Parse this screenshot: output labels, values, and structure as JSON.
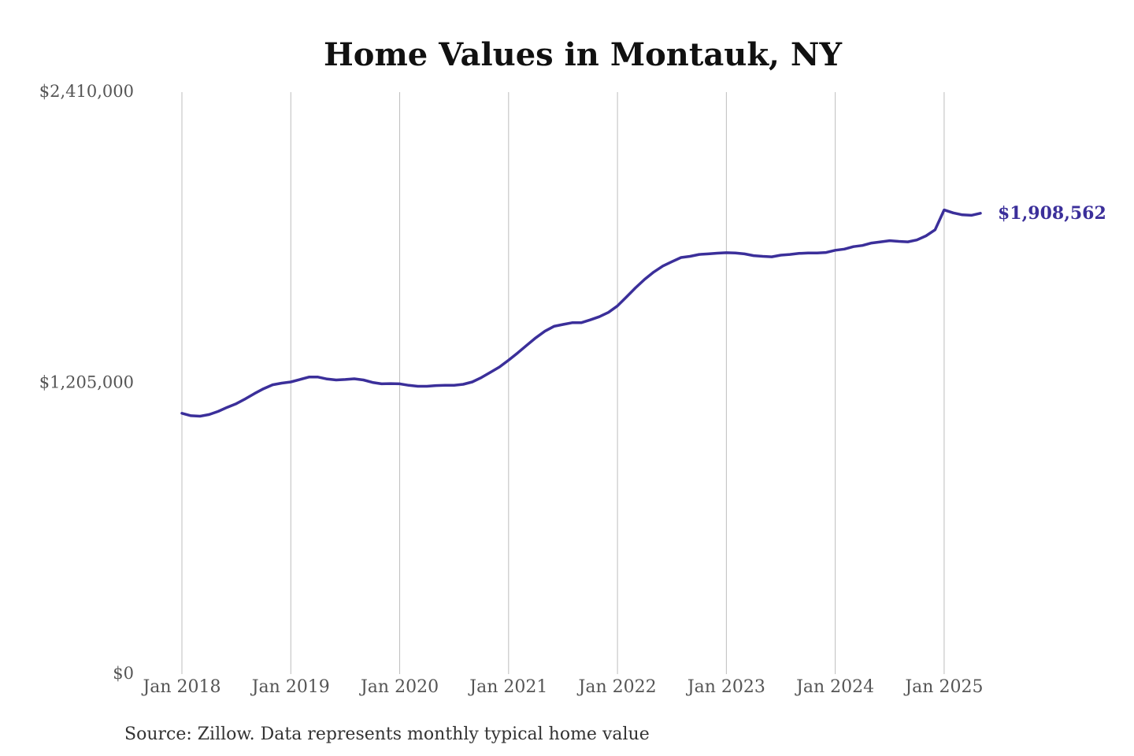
{
  "chart_data": {
    "type": "line",
    "title": "Home Values in Montauk, NY",
    "xlabel": "",
    "ylabel": "",
    "ylim": [
      0,
      2410000
    ],
    "yticks": [
      {
        "value": 0,
        "label": "$0"
      },
      {
        "value": 1205000,
        "label": "$1,205,000"
      },
      {
        "value": 2410000,
        "label": "$2,410,000"
      }
    ],
    "xlim": [
      "2018-01",
      "2025-05"
    ],
    "xticks": [
      {
        "date": "2018-01",
        "label": "Jan 2018"
      },
      {
        "date": "2019-01",
        "label": "Jan 2019"
      },
      {
        "date": "2020-01",
        "label": "Jan 2020"
      },
      {
        "date": "2021-01",
        "label": "Jan 2021"
      },
      {
        "date": "2022-01",
        "label": "Jan 2022"
      },
      {
        "date": "2023-01",
        "label": "Jan 2023"
      },
      {
        "date": "2024-01",
        "label": "Jan 2024"
      },
      {
        "date": "2025-01",
        "label": "Jan 2025"
      }
    ],
    "grid": "vertical",
    "series": [
      {
        "color": "#3b2f9a",
        "points": [
          [
            "2018-01",
            1080000
          ],
          [
            "2018-02",
            1070000
          ],
          [
            "2018-03",
            1068000
          ],
          [
            "2018-04",
            1075000
          ],
          [
            "2018-05",
            1088000
          ],
          [
            "2018-06",
            1105000
          ],
          [
            "2018-07",
            1120000
          ],
          [
            "2018-08",
            1140000
          ],
          [
            "2018-09",
            1162000
          ],
          [
            "2018-10",
            1182000
          ],
          [
            "2018-11",
            1198000
          ],
          [
            "2018-12",
            1205000
          ],
          [
            "2019-01",
            1210000
          ],
          [
            "2019-02",
            1220000
          ],
          [
            "2019-03",
            1230000
          ],
          [
            "2019-04",
            1230000
          ],
          [
            "2019-05",
            1222000
          ],
          [
            "2019-06",
            1218000
          ],
          [
            "2019-07",
            1220000
          ],
          [
            "2019-08",
            1223000
          ],
          [
            "2019-09",
            1218000
          ],
          [
            "2019-10",
            1208000
          ],
          [
            "2019-11",
            1202000
          ],
          [
            "2019-12",
            1203000
          ],
          [
            "2020-01",
            1202000
          ],
          [
            "2020-02",
            1196000
          ],
          [
            "2020-03",
            1192000
          ],
          [
            "2020-04",
            1192000
          ],
          [
            "2020-05",
            1195000
          ],
          [
            "2020-06",
            1196000
          ],
          [
            "2020-07",
            1196000
          ],
          [
            "2020-08",
            1200000
          ],
          [
            "2020-09",
            1210000
          ],
          [
            "2020-10",
            1228000
          ],
          [
            "2020-11",
            1250000
          ],
          [
            "2020-12",
            1272000
          ],
          [
            "2021-01",
            1300000
          ],
          [
            "2021-02",
            1330000
          ],
          [
            "2021-03",
            1362000
          ],
          [
            "2021-04",
            1393000
          ],
          [
            "2021-05",
            1420000
          ],
          [
            "2021-06",
            1440000
          ],
          [
            "2021-07",
            1448000
          ],
          [
            "2021-08",
            1455000
          ],
          [
            "2021-09",
            1455000
          ],
          [
            "2021-10",
            1467000
          ],
          [
            "2021-11",
            1480000
          ],
          [
            "2021-12",
            1498000
          ],
          [
            "2022-01",
            1525000
          ],
          [
            "2022-02",
            1562000
          ],
          [
            "2022-03",
            1600000
          ],
          [
            "2022-04",
            1635000
          ],
          [
            "2022-05",
            1665000
          ],
          [
            "2022-06",
            1690000
          ],
          [
            "2022-07",
            1708000
          ],
          [
            "2022-08",
            1725000
          ],
          [
            "2022-09",
            1730000
          ],
          [
            "2022-10",
            1738000
          ],
          [
            "2022-11",
            1740000
          ],
          [
            "2022-12",
            1743000
          ],
          [
            "2023-01",
            1745000
          ],
          [
            "2023-02",
            1744000
          ],
          [
            "2023-03",
            1740000
          ],
          [
            "2023-04",
            1733000
          ],
          [
            "2023-05",
            1730000
          ],
          [
            "2023-06",
            1728000
          ],
          [
            "2023-07",
            1735000
          ],
          [
            "2023-08",
            1738000
          ],
          [
            "2023-09",
            1742000
          ],
          [
            "2023-10",
            1744000
          ],
          [
            "2023-11",
            1744000
          ],
          [
            "2023-12",
            1746000
          ],
          [
            "2024-01",
            1755000
          ],
          [
            "2024-02",
            1760000
          ],
          [
            "2024-03",
            1770000
          ],
          [
            "2024-04",
            1775000
          ],
          [
            "2024-05",
            1785000
          ],
          [
            "2024-06",
            1790000
          ],
          [
            "2024-07",
            1795000
          ],
          [
            "2024-08",
            1792000
          ],
          [
            "2024-09",
            1790000
          ],
          [
            "2024-10",
            1798000
          ],
          [
            "2024-11",
            1815000
          ],
          [
            "2024-12",
            1840000
          ],
          [
            "2025-01",
            1922000
          ],
          [
            "2025-02",
            1910000
          ],
          [
            "2025-03",
            1902000
          ],
          [
            "2025-04",
            1900000
          ],
          [
            "2025-05",
            1908562
          ]
        ]
      }
    ],
    "end_label": "$1,908,562",
    "source": "Source: Zillow. Data represents monthly typical home value"
  }
}
